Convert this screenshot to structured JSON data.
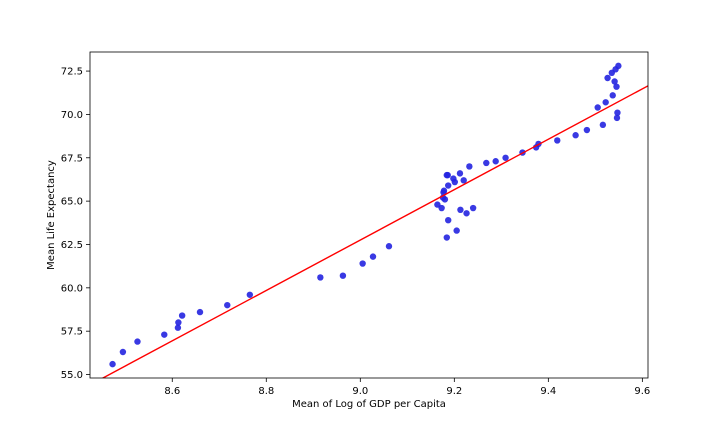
{
  "chart_data": {
    "type": "scatter",
    "xlabel": "Mean of Log of GDP per Capita",
    "ylabel": "Mean Life Expectancy",
    "xlim": [
      8.425,
      9.612
    ],
    "ylim": [
      54.8,
      73.6
    ],
    "xticks": [
      8.6,
      8.8,
      9.0,
      9.2,
      9.4,
      9.6
    ],
    "xtick_labels": [
      "8.6",
      "8.8",
      "9.0",
      "9.2",
      "9.4",
      "9.6"
    ],
    "yticks": [
      55.0,
      57.5,
      60.0,
      62.5,
      65.0,
      67.5,
      70.0,
      72.5
    ],
    "ytick_labels": [
      "55.0",
      "57.5",
      "60.0",
      "62.5",
      "65.0",
      "67.5",
      "70.0",
      "72.5"
    ],
    "grid": false,
    "point_color": "#2323e0",
    "line_color": "#ff0000",
    "points": [
      [
        8.473,
        55.6
      ],
      [
        8.495,
        56.3
      ],
      [
        8.526,
        56.9
      ],
      [
        8.583,
        57.3
      ],
      [
        8.612,
        57.7
      ],
      [
        8.613,
        58.0
      ],
      [
        8.621,
        58.4
      ],
      [
        8.659,
        58.6
      ],
      [
        8.717,
        59.0
      ],
      [
        8.765,
        59.6
      ],
      [
        8.915,
        60.6
      ],
      [
        8.963,
        60.7
      ],
      [
        9.005,
        61.4
      ],
      [
        9.027,
        61.8
      ],
      [
        9.061,
        62.4
      ],
      [
        9.164,
        64.8
      ],
      [
        9.173,
        64.6
      ],
      [
        9.176,
        65.2
      ],
      [
        9.177,
        65.5
      ],
      [
        9.178,
        65.6
      ],
      [
        9.18,
        65.1
      ],
      [
        9.184,
        66.5
      ],
      [
        9.186,
        66.5
      ],
      [
        9.187,
        65.9
      ],
      [
        9.184,
        62.9
      ],
      [
        9.187,
        63.9
      ],
      [
        9.198,
        66.3
      ],
      [
        9.201,
        66.1
      ],
      [
        9.205,
        63.3
      ],
      [
        9.212,
        66.6
      ],
      [
        9.213,
        64.5
      ],
      [
        9.22,
        66.2
      ],
      [
        9.226,
        64.3
      ],
      [
        9.232,
        67.0
      ],
      [
        9.24,
        64.6
      ],
      [
        9.268,
        67.2
      ],
      [
        9.288,
        67.3
      ],
      [
        9.309,
        67.5
      ],
      [
        9.345,
        67.8
      ],
      [
        9.374,
        68.1
      ],
      [
        9.379,
        68.3
      ],
      [
        9.419,
        68.5
      ],
      [
        9.458,
        68.8
      ],
      [
        9.482,
        69.1
      ],
      [
        9.505,
        70.4
      ],
      [
        9.516,
        69.4
      ],
      [
        9.522,
        70.7
      ],
      [
        9.526,
        72.1
      ],
      [
        9.535,
        72.4
      ],
      [
        9.537,
        71.1
      ],
      [
        9.541,
        71.9
      ],
      [
        9.543,
        72.6
      ],
      [
        9.545,
        71.6
      ],
      [
        9.546,
        69.8
      ],
      [
        9.547,
        70.1
      ],
      [
        9.549,
        72.8
      ]
    ],
    "fit_line": {
      "x": [
        8.425,
        9.612
      ],
      "y": [
        54.4,
        71.65
      ]
    }
  }
}
